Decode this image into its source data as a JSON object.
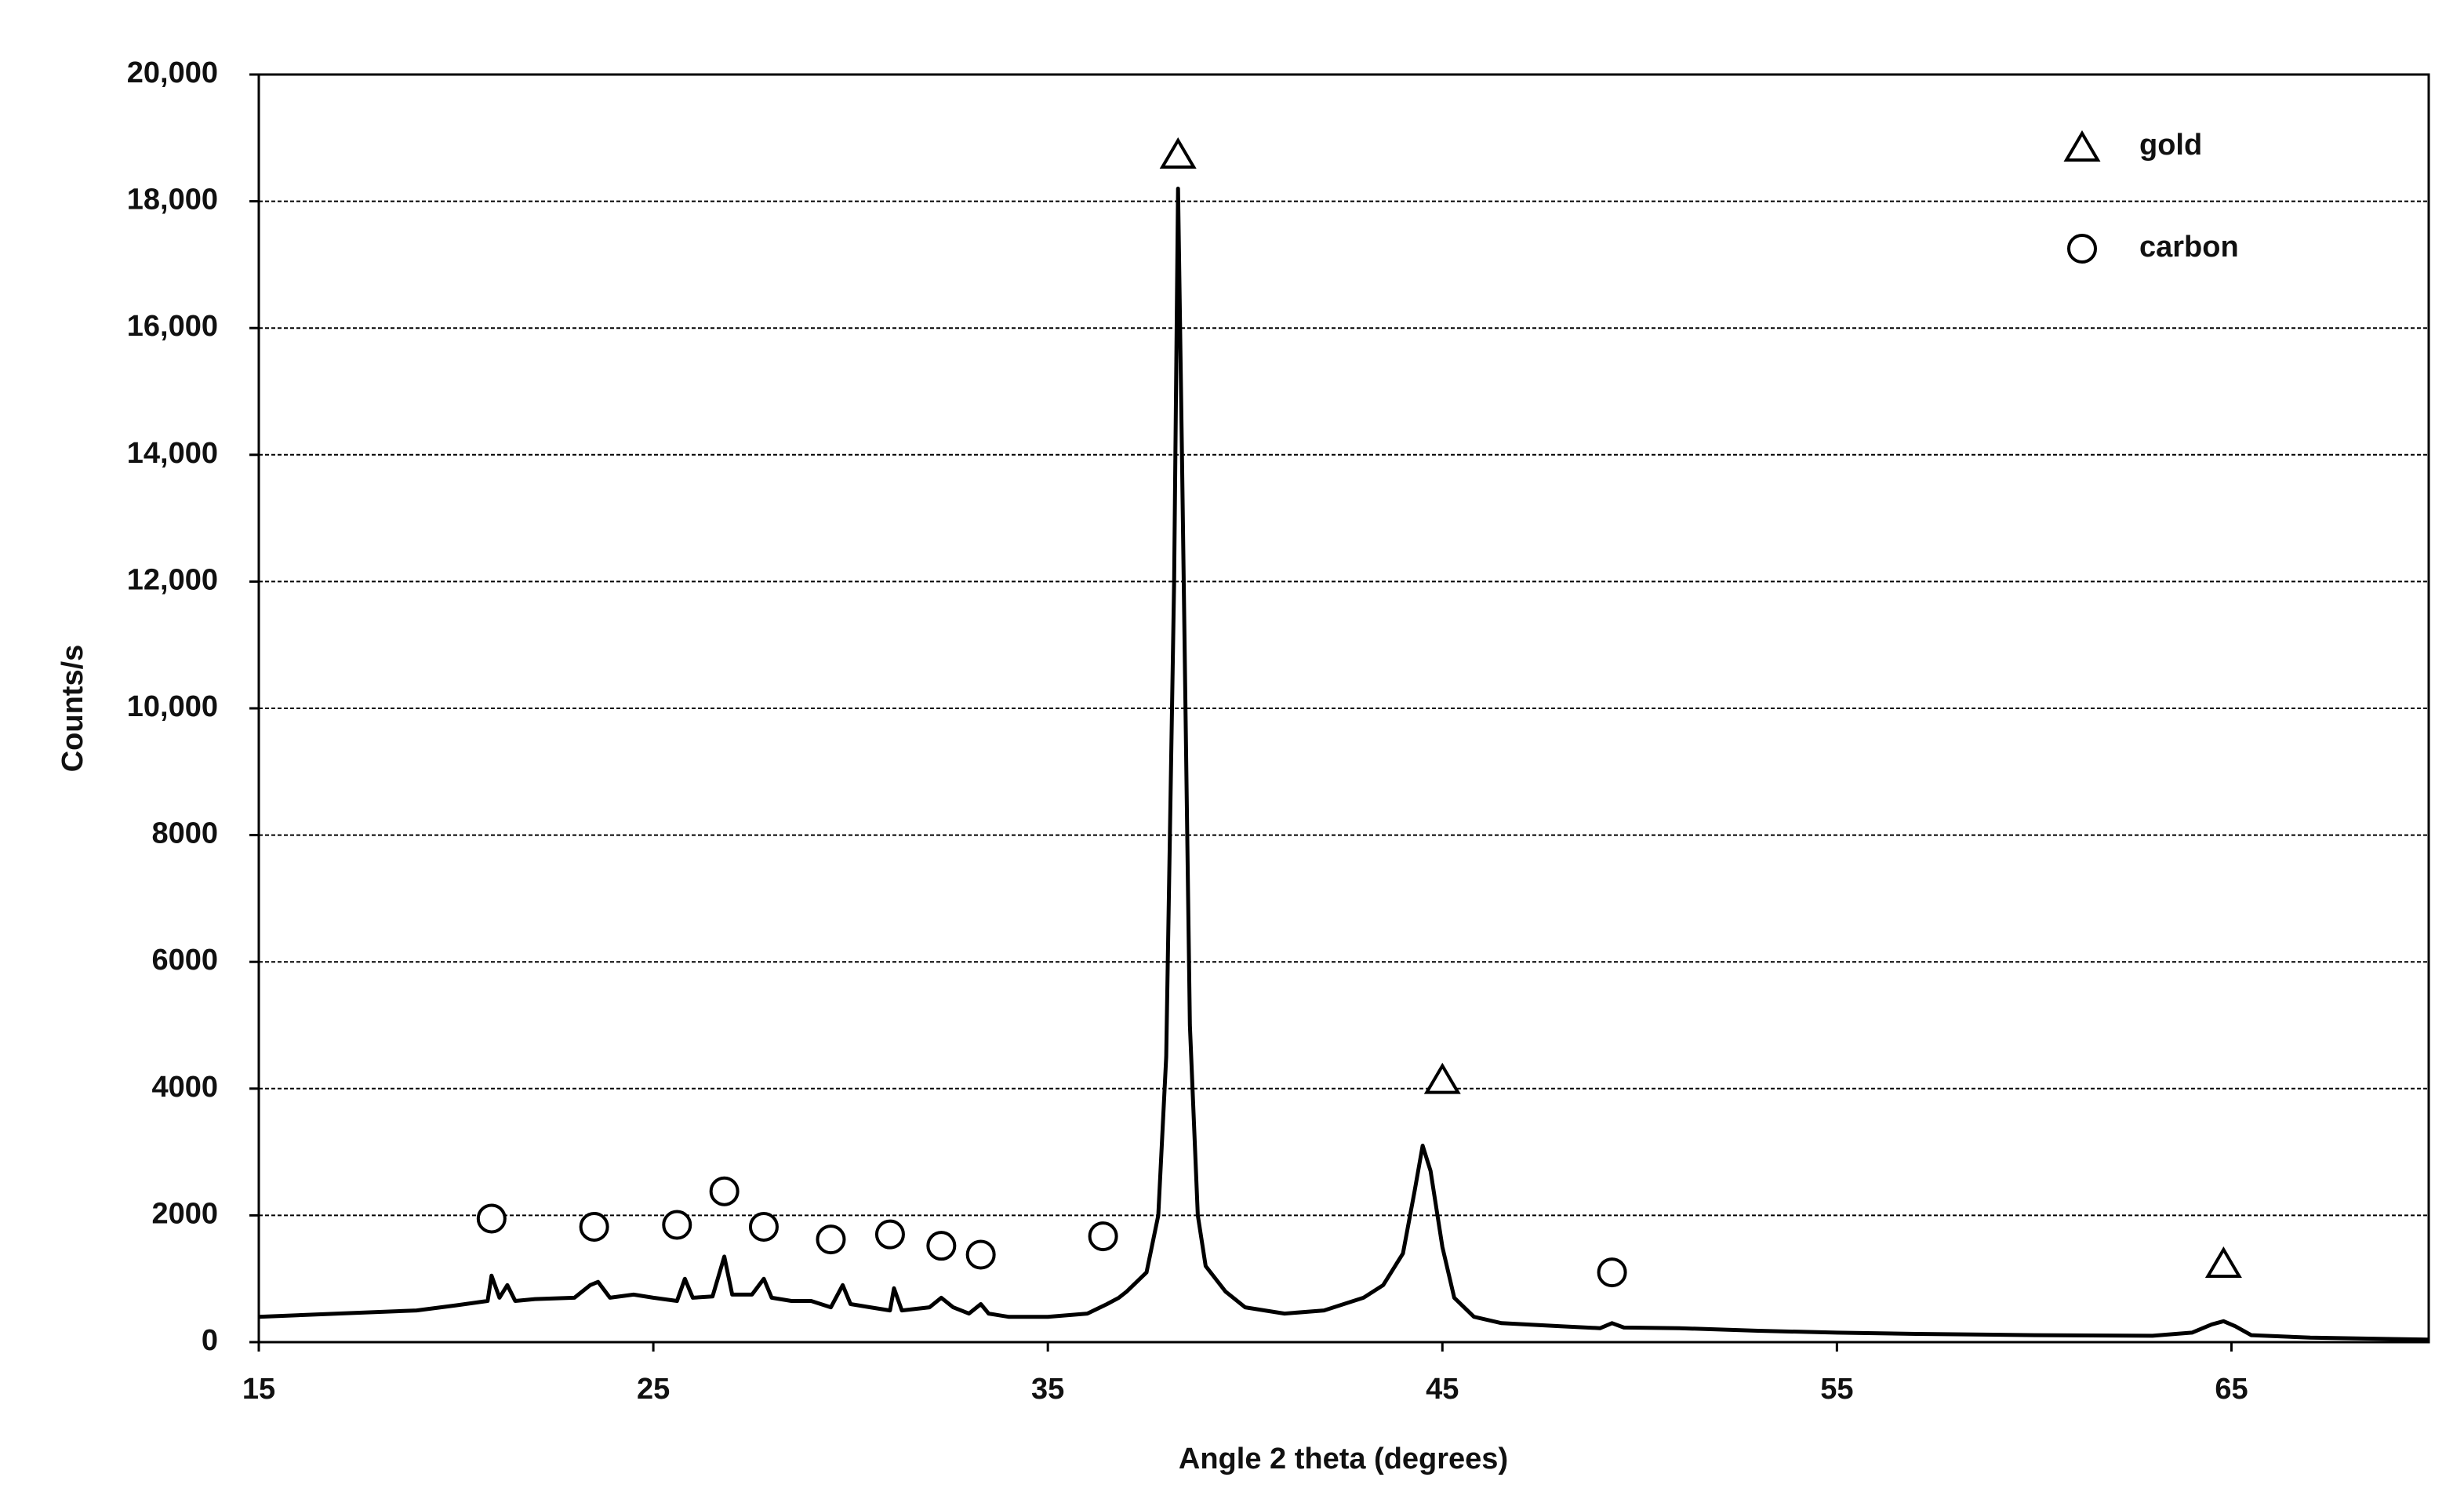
{
  "chart_data": {
    "type": "line",
    "x_label": "Angle 2 theta (degrees)",
    "y_label": "Counts/s",
    "xlim": [
      15,
      70
    ],
    "xticks": [
      15,
      25,
      35,
      45,
      55,
      65
    ],
    "ylim": [
      0,
      20000
    ],
    "yticks": [
      0,
      2000,
      4000,
      6000,
      8000,
      {
        "value": 10000,
        "label": "10,000"
      },
      {
        "value": 12000,
        "label": "12,000"
      },
      {
        "value": 14000,
        "label": "14,000"
      },
      {
        "value": 16000,
        "label": "16,000"
      },
      {
        "value": 18000,
        "label": "18,000"
      },
      {
        "value": 20000,
        "label": "20,000"
      }
    ],
    "grid": true,
    "legend": "top-right",
    "x": [
      15,
      17,
      19,
      20,
      20.8,
      20.9,
      21.1,
      21.3,
      21.5,
      22,
      23,
      23.4,
      23.6,
      23.9,
      24.5,
      25,
      25.6,
      25.8,
      26,
      26.5,
      26.8,
      27,
      27.5,
      27.8,
      28,
      28.5,
      29,
      29.5,
      29.8,
      30,
      30.5,
      31,
      31.1,
      31.3,
      32,
      32.3,
      32.6,
      33,
      33.3,
      33.5,
      34,
      35,
      36,
      36.5,
      36.8,
      37,
      37.5,
      37.8,
      38,
      38.2,
      38.3,
      38.4,
      38.6,
      38.8,
      39,
      39.5,
      40,
      41,
      42,
      43,
      43.5,
      44,
      44.3,
      44.5,
      44.7,
      45,
      45.3,
      45.8,
      46.5,
      48,
      49,
      49.3,
      49.6,
      51,
      53,
      55,
      57,
      60,
      63,
      64,
      64.5,
      64.8,
      65.1,
      65.5,
      67,
      70
    ],
    "series": [
      {
        "color": "#000000",
        "values": [
          400,
          450,
          500,
          580,
          650,
          1050,
          700,
          900,
          650,
          680,
          700,
          900,
          950,
          700,
          750,
          700,
          650,
          1000,
          700,
          720,
          1350,
          750,
          750,
          1000,
          700,
          650,
          650,
          550,
          900,
          600,
          550,
          500,
          850,
          500,
          550,
          700,
          550,
          450,
          600,
          450,
          400,
          400,
          450,
          600,
          700,
          800,
          1100,
          2000,
          4500,
          12000,
          18200,
          14000,
          5000,
          2000,
          1200,
          800,
          550,
          450,
          500,
          700,
          900,
          1400,
          2400,
          3100,
          2700,
          1500,
          700,
          400,
          300,
          250,
          220,
          300,
          230,
          220,
          180,
          150,
          130,
          110,
          100,
          150,
          280,
          330,
          250,
          110,
          70,
          40
        ]
      }
    ],
    "marker_sets": [
      {
        "name": "gold",
        "symbol": "triangle",
        "x": [
          38.3,
          45,
          64.8
        ],
        "y": [
          18750,
          4150,
          1250
        ]
      },
      {
        "name": "carbon",
        "symbol": "circle",
        "x": [
          20.9,
          23.5,
          25.6,
          26.8,
          27.8,
          29.5,
          31,
          32.3,
          33.3,
          36.4,
          49.3
        ],
        "y": [
          1950,
          1820,
          1850,
          2380,
          1820,
          1620,
          1700,
          1520,
          1380,
          1670,
          1100
        ]
      }
    ]
  }
}
